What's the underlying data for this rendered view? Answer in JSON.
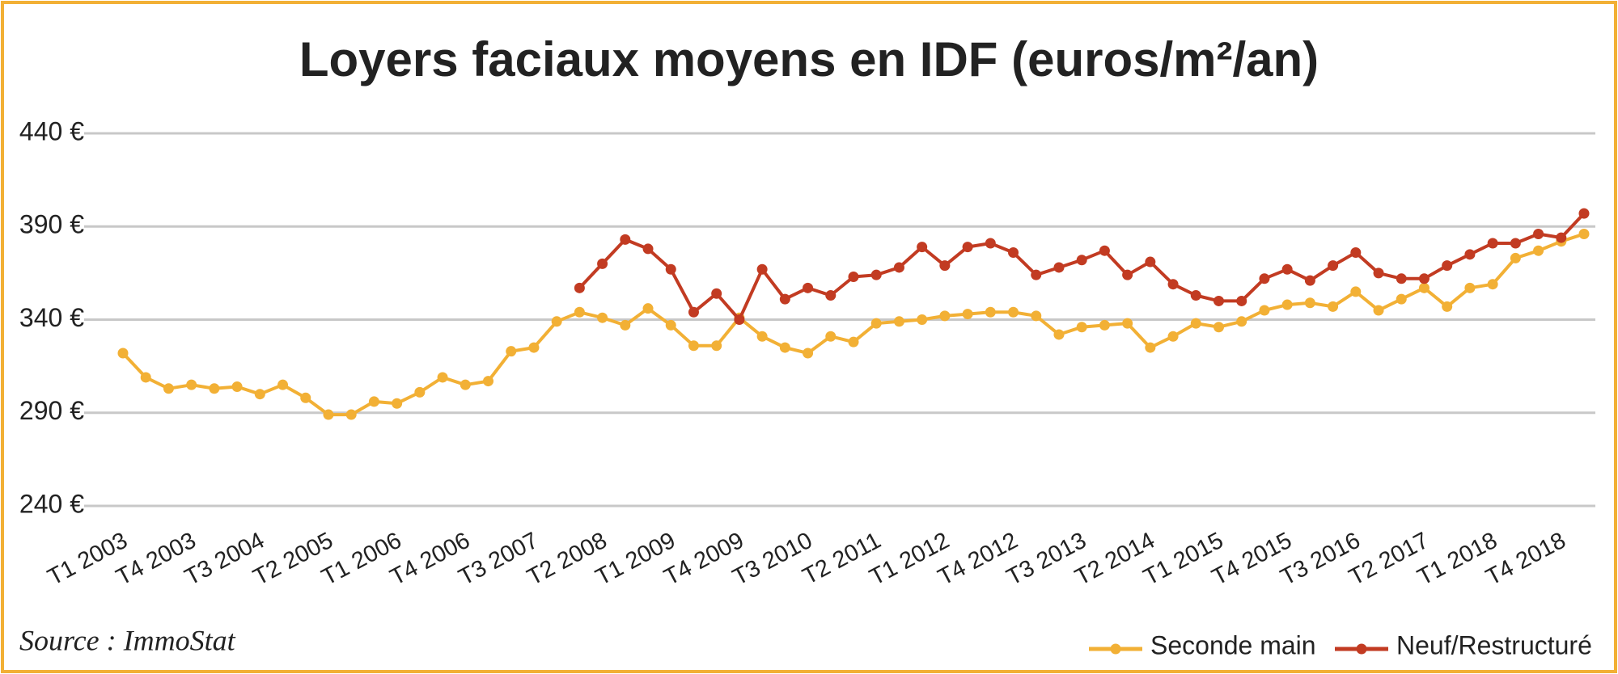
{
  "chart_data": {
    "type": "line",
    "title": "Loyers faciaux moyens en IDF (euros/m²/an)",
    "source": "Source : ImmoStat",
    "categories": [
      "T1 2003",
      null,
      null,
      "T4 2003",
      null,
      null,
      "T3 2004",
      null,
      null,
      "T2 2005",
      null,
      null,
      "T1 2006",
      null,
      null,
      "T4 2006",
      null,
      null,
      "T3 2007",
      null,
      null,
      "T2 2008",
      null,
      null,
      "T1 2009",
      null,
      null,
      "T4 2009",
      null,
      null,
      "T3 2010",
      null,
      null,
      "T2 2011",
      null,
      null,
      "T1 2012",
      null,
      null,
      "T4 2012",
      null,
      null,
      "T3 2013",
      null,
      null,
      "T2 2014",
      null,
      null,
      "T1 2015",
      null,
      null,
      "T4 2015",
      null,
      null,
      "T3 2016",
      null,
      null,
      "T2 2017",
      null,
      null,
      "T1 2018",
      null,
      null,
      "T4 2018",
      null
    ],
    "series": [
      {
        "name": "Seconde main",
        "color": "#f2b035",
        "values": [
          322,
          309,
          303,
          305,
          303,
          304,
          300,
          305,
          298,
          289,
          289,
          296,
          295,
          301,
          309,
          305,
          307,
          323,
          325,
          339,
          344,
          341,
          337,
          346,
          337,
          326,
          326,
          341,
          331,
          325,
          322,
          331,
          328,
          338,
          339,
          340,
          342,
          343,
          344,
          344,
          342,
          332,
          336,
          337,
          338,
          325,
          331,
          338,
          336,
          339,
          345,
          348,
          349,
          347,
          355,
          345,
          351,
          357,
          347,
          357,
          359,
          373,
          377,
          382,
          386
        ]
      },
      {
        "name": "Neuf/Restructuré",
        "color": "#c23b22",
        "values": [
          null,
          null,
          null,
          null,
          null,
          null,
          null,
          null,
          null,
          null,
          null,
          null,
          null,
          null,
          null,
          null,
          null,
          null,
          null,
          null,
          357,
          370,
          383,
          378,
          367,
          344,
          354,
          340,
          367,
          351,
          357,
          353,
          363,
          364,
          368,
          379,
          369,
          379,
          381,
          376,
          364,
          368,
          372,
          377,
          364,
          371,
          359,
          353,
          350,
          350,
          362,
          367,
          361,
          369,
          376,
          365,
          362,
          362,
          369,
          375,
          381,
          381,
          386,
          384,
          397
        ]
      }
    ],
    "ylim": [
      240,
      440
    ],
    "yticks": [
      {
        "value": 240,
        "label": "240 €"
      },
      {
        "value": 290,
        "label": "290 €"
      },
      {
        "value": 340,
        "label": "340 €"
      },
      {
        "value": 390,
        "label": "390 €"
      },
      {
        "value": 440,
        "label": "440 €"
      }
    ],
    "grid": true,
    "legend": "bottom-right"
  }
}
